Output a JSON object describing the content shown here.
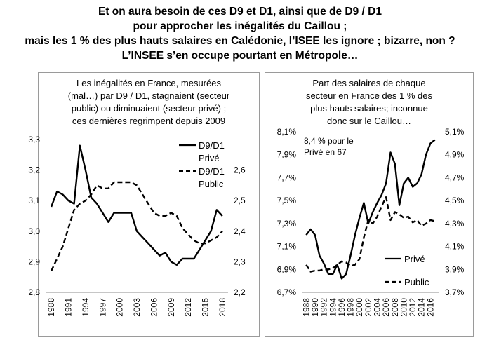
{
  "headline": {
    "line1": "Et on aura besoin de ces D9 et D1, ainsi que de D9 / D1",
    "line2": "pour approcher les inégalités du Caillou ;",
    "line3": "mais les 1 % des plus hauts salaires en Calédonie, l’ISEE les ignore ; bizarre, non ?",
    "line4": "L’INSEE s’en occupe pourtant en Métropole…"
  },
  "chart_data": [
    {
      "type": "line",
      "title": [
        "Les inégalités en France, mesurées",
        "(mal…) par D9 / D1, stagnaient (secteur",
        "public) ou diminuaient (secteur privé) ;",
        "ces dernières regrimpent depuis 2009"
      ],
      "x_ticks": [
        "1988",
        "1991",
        "1994",
        "1997",
        "2000",
        "2003",
        "2006",
        "2009",
        "2012",
        "2015",
        "2018"
      ],
      "xlim": [
        1987,
        2019
      ],
      "y_left": {
        "lim": [
          2.8,
          3.3
        ],
        "ticks": [
          "2,8",
          "2,9",
          "3,0",
          "3,1",
          "3,2",
          "3,3"
        ]
      },
      "y_right": {
        "lim": [
          2.2,
          2.7
        ],
        "ticks": [
          "2,2",
          "2,3",
          "2,4",
          "2,5",
          "2,6"
        ]
      },
      "series": [
        {
          "name": "D9/D1 Privé",
          "legend_line1": "D9/D1",
          "legend_line2": "Privé",
          "axis": "left",
          "style": "solid",
          "x": [
            1988,
            1989,
            1990,
            1991,
            1992,
            1993,
            1994,
            1995,
            1996,
            1997,
            1998,
            1999,
            2000,
            2001,
            2002,
            2003,
            2004,
            2005,
            2006,
            2007,
            2008,
            2009,
            2010,
            2011,
            2012,
            2013,
            2014,
            2015,
            2016,
            2017,
            2018
          ],
          "y": [
            3.08,
            3.13,
            3.12,
            3.1,
            3.09,
            3.28,
            3.2,
            3.11,
            3.09,
            3.06,
            3.03,
            3.06,
            3.06,
            3.06,
            3.06,
            3.0,
            2.98,
            2.96,
            2.94,
            2.92,
            2.93,
            2.9,
            2.89,
            2.91,
            2.91,
            2.91,
            2.94,
            2.97,
            3.0,
            3.07,
            3.05
          ]
        },
        {
          "name": "D9/D1 Public",
          "legend_line1": "D9/D1",
          "legend_line2": "Public",
          "axis": "right",
          "style": "dashed",
          "x": [
            1988,
            1989,
            1990,
            1991,
            1992,
            1993,
            1994,
            1995,
            1996,
            1997,
            1998,
            1999,
            2000,
            2001,
            2002,
            2003,
            2004,
            2005,
            2006,
            2007,
            2008,
            2009,
            2010,
            2011,
            2012,
            2013,
            2014,
            2015,
            2016,
            2017,
            2018
          ],
          "y": [
            2.27,
            2.31,
            2.35,
            2.41,
            2.47,
            2.49,
            2.5,
            2.52,
            2.55,
            2.54,
            2.54,
            2.56,
            2.56,
            2.56,
            2.56,
            2.55,
            2.52,
            2.49,
            2.46,
            2.45,
            2.45,
            2.46,
            2.45,
            2.41,
            2.39,
            2.37,
            2.36,
            2.36,
            2.37,
            2.38,
            2.4
          ]
        }
      ]
    },
    {
      "type": "line",
      "title": [
        "Part des salaires de chaque",
        "secteur en France des 1 % des",
        "plus hauts salaires; inconnue",
        "donc sur le Caillou…"
      ],
      "annotation": [
        "8,4 % pour le",
        "Privé en 67"
      ],
      "x_ticks": [
        "1988",
        "1990",
        "1992",
        "1994",
        "1996",
        "1998",
        "2000",
        "2002",
        "2004",
        "2006",
        "2008",
        "2010",
        "2012",
        "2014",
        "2016"
      ],
      "xlim": [
        1987,
        2018
      ],
      "y_left": {
        "lim": [
          6.7,
          8.1
        ],
        "ticks": [
          "6,7%",
          "6,9%",
          "7,1%",
          "7,3%",
          "7,5%",
          "7,7%",
          "7,9%",
          "8,1%"
        ]
      },
      "y_right": {
        "lim": [
          3.7,
          5.1
        ],
        "ticks": [
          "3,7%",
          "3,9%",
          "4,1%",
          "4,3%",
          "4,5%",
          "4,7%",
          "4,9%",
          "5,1%"
        ]
      },
      "series": [
        {
          "name": "Privé",
          "axis": "left",
          "style": "solid",
          "x": [
            1988,
            1989,
            1990,
            1991,
            1992,
            1993,
            1994,
            1995,
            1996,
            1997,
            1998,
            1999,
            2000,
            2001,
            2002,
            2003,
            2004,
            2005,
            2006,
            2007,
            2008,
            2009,
            2010,
            2011,
            2012,
            2013,
            2014,
            2015,
            2016,
            2017
          ],
          "y": [
            7.2,
            7.25,
            7.2,
            7.02,
            6.95,
            6.86,
            6.86,
            6.94,
            6.82,
            6.86,
            7.02,
            7.2,
            7.35,
            7.48,
            7.3,
            7.4,
            7.48,
            7.55,
            7.65,
            7.92,
            7.82,
            7.46,
            7.65,
            7.7,
            7.62,
            7.65,
            7.73,
            7.9,
            8.0,
            8.03
          ]
        },
        {
          "name": "Public",
          "axis": "right",
          "style": "dashed",
          "x": [
            1988,
            1989,
            1990,
            1991,
            1992,
            1993,
            1994,
            1995,
            1996,
            1997,
            1998,
            1999,
            2000,
            2001,
            2002,
            2003,
            2004,
            2005,
            2006,
            2007,
            2008,
            2009,
            2010,
            2011,
            2012,
            2013,
            2014,
            2015,
            2016,
            2017
          ],
          "y": [
            3.94,
            3.88,
            3.89,
            3.89,
            3.9,
            3.9,
            3.91,
            3.94,
            3.97,
            3.96,
            3.93,
            3.94,
            3.99,
            4.18,
            4.33,
            4.3,
            4.36,
            4.45,
            4.53,
            4.33,
            4.4,
            4.38,
            4.35,
            4.36,
            4.31,
            4.33,
            4.28,
            4.3,
            4.33,
            4.32
          ]
        }
      ]
    }
  ]
}
